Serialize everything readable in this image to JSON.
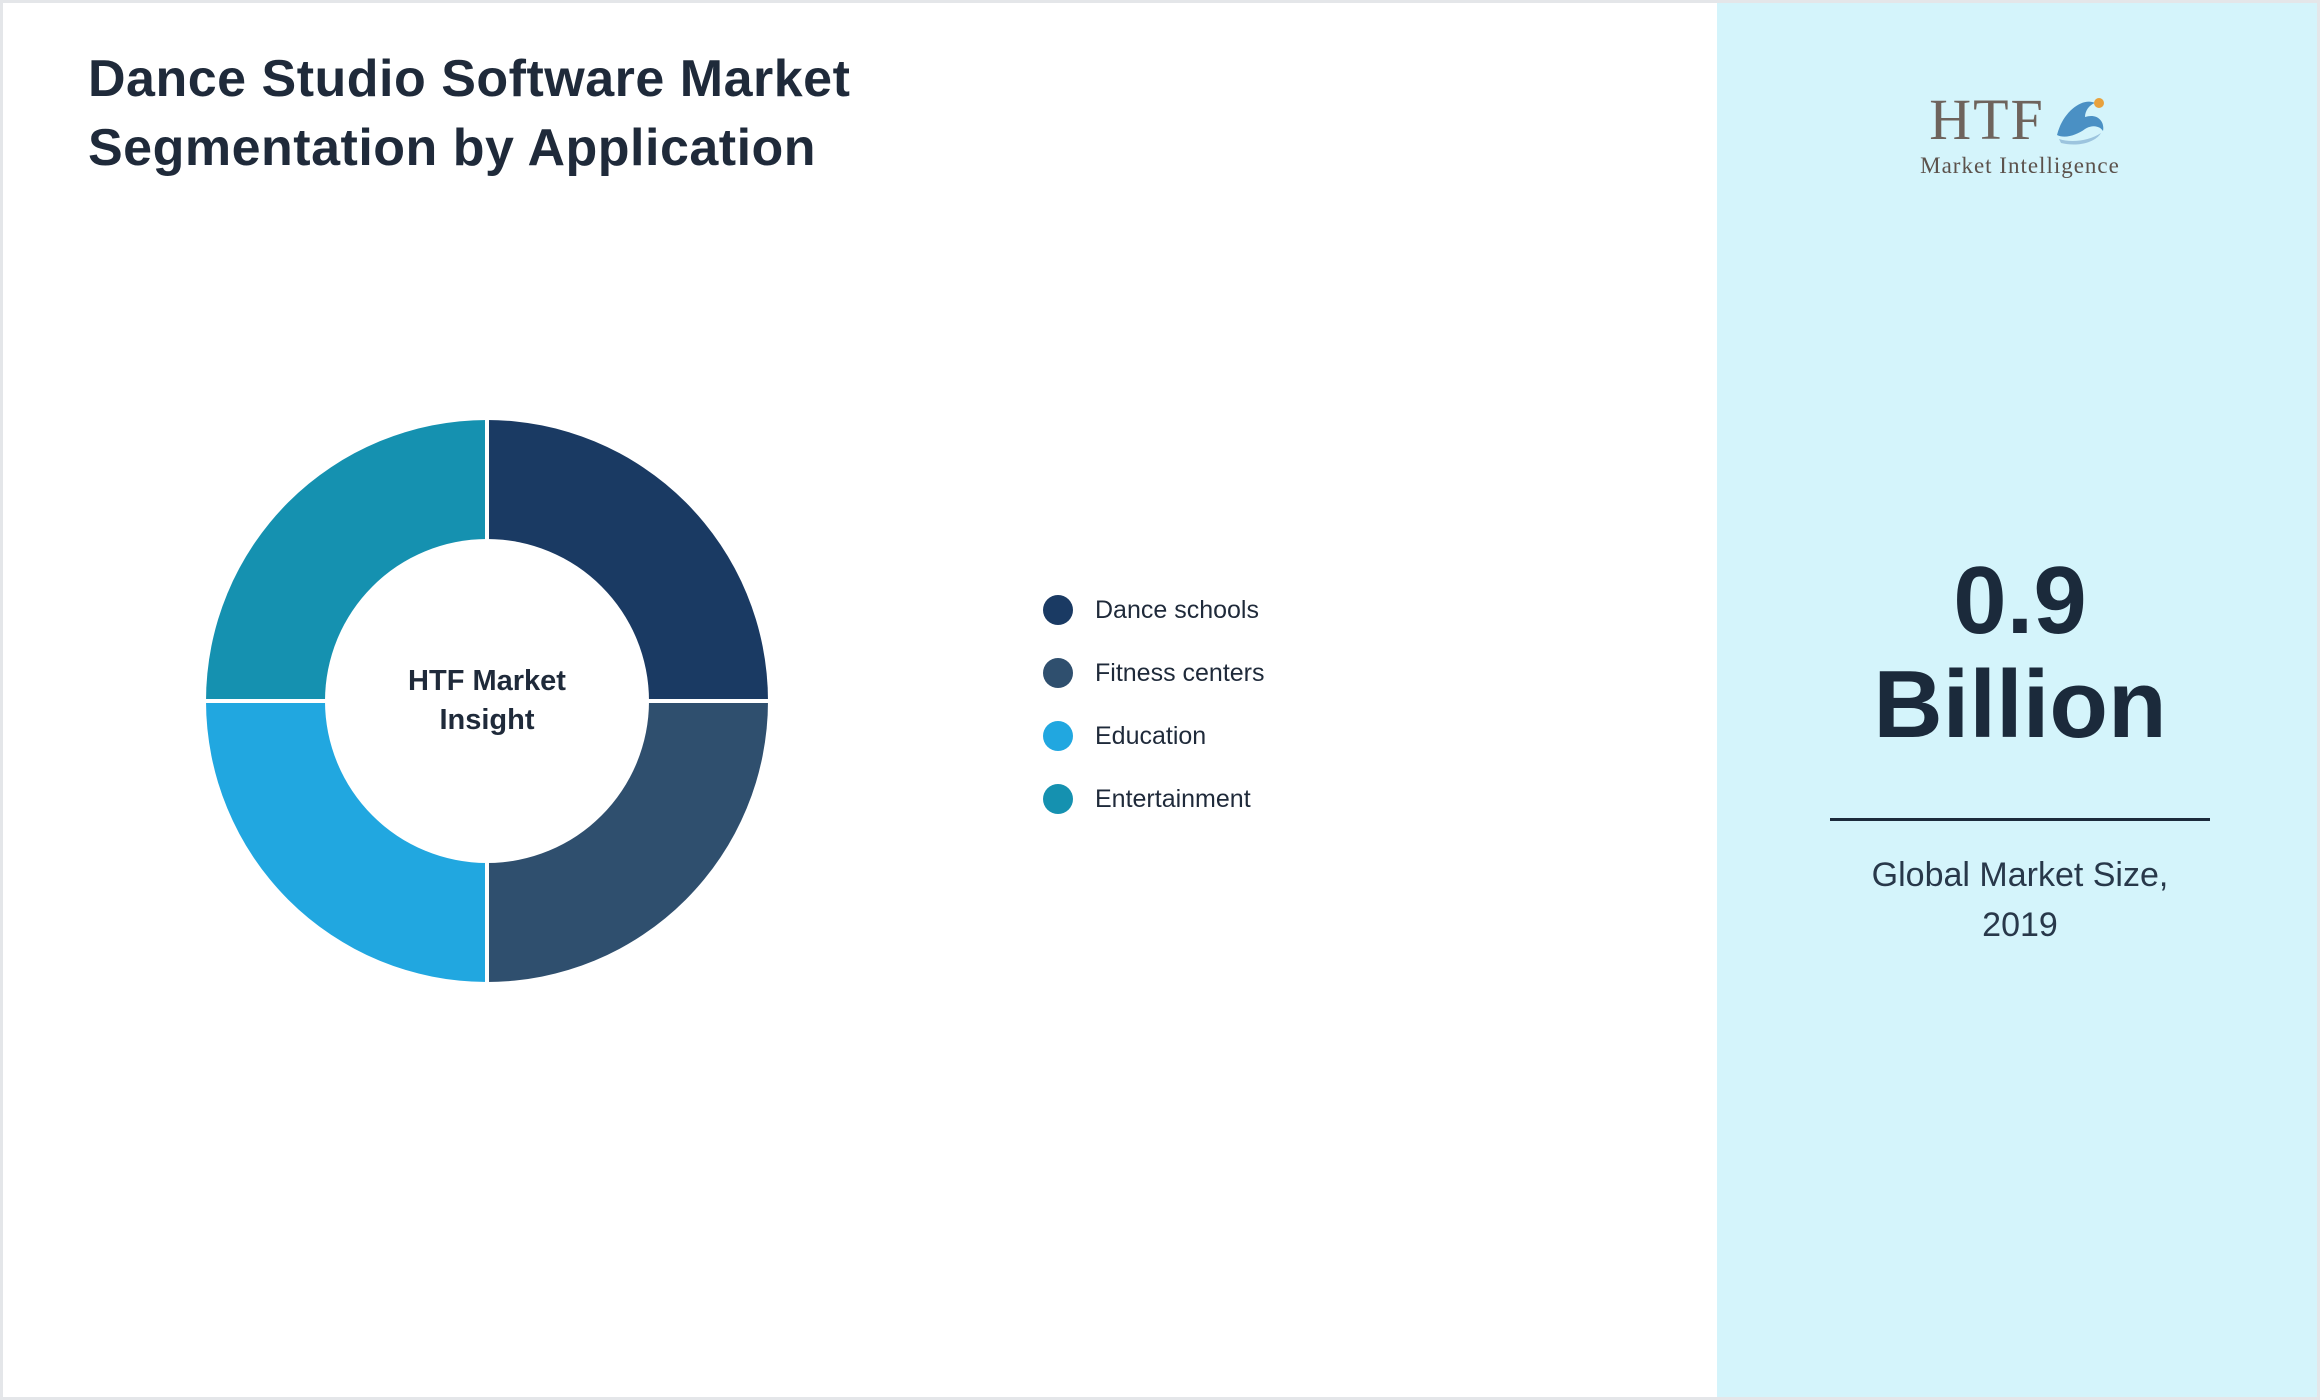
{
  "title": {
    "line1": "Dance Studio Software Market",
    "line2": "Segmentation by Application"
  },
  "chart_data": {
    "type": "pie",
    "subtype": "donut",
    "title": "Dance Studio Software Market Segmentation by Application",
    "center_label": "HTF Market Insight",
    "legend_position": "right",
    "units": "percent",
    "segments": [
      {
        "label": "Dance schools",
        "value": 25,
        "color": "#1a3a63"
      },
      {
        "label": "Fitness centers",
        "value": 25,
        "color": "#2f4f6e"
      },
      {
        "label": "Education",
        "value": 25,
        "color": "#21a7e0"
      },
      {
        "label": "Entertainment",
        "value": 25,
        "color": "#1591b0"
      }
    ]
  },
  "right_panel": {
    "bg_color": "#d4f4fb",
    "logo_text": "HTF",
    "logo_subtext": "Market Intelligence",
    "stat_value": "0.9",
    "stat_unit": "Billion",
    "caption_line1": "Global Market Size,",
    "caption_line2": "2019"
  },
  "colors": {
    "title_text": "#1f2a3a",
    "stat_text": "#1b2a3b",
    "page_border": "#e4e6e9"
  }
}
